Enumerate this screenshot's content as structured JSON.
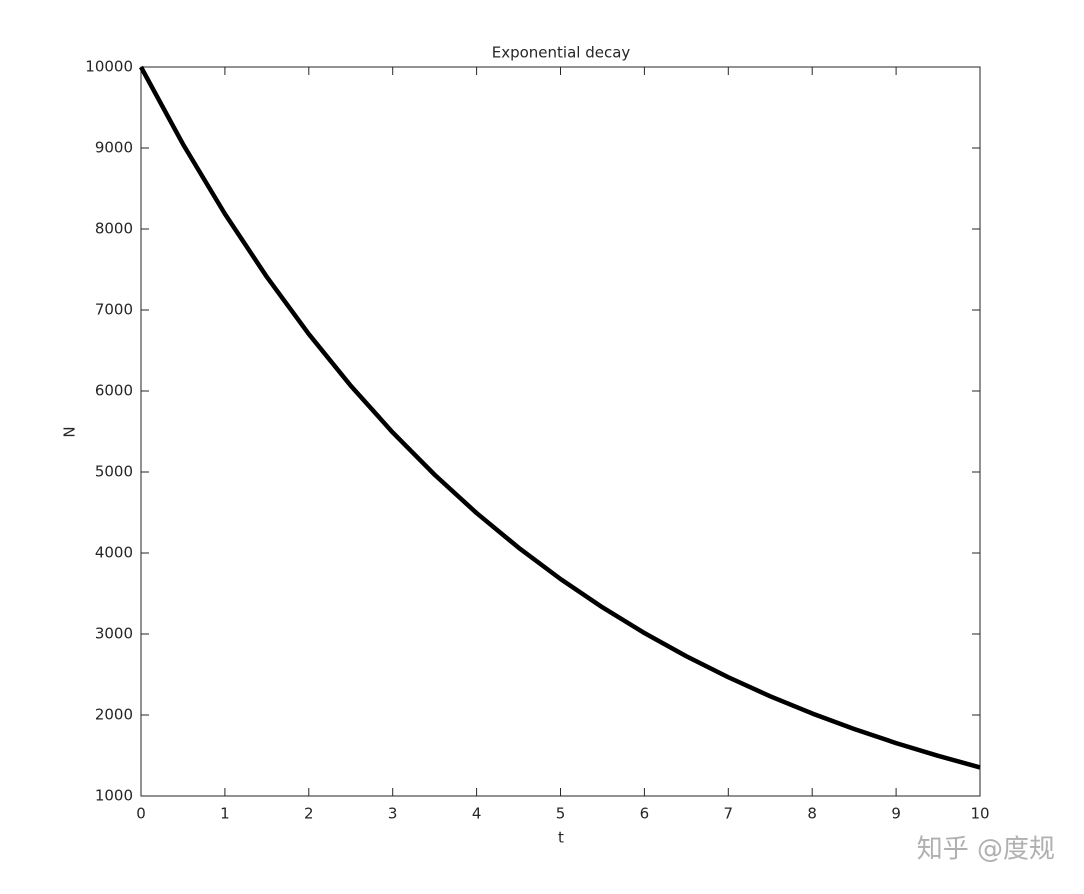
{
  "chart_data": {
    "type": "line",
    "title": "Exponential decay",
    "xlabel": "t",
    "ylabel": "N",
    "x": [
      0,
      0.5,
      1,
      1.5,
      2,
      2.5,
      3,
      3.5,
      4,
      4.5,
      5,
      5.5,
      6,
      6.5,
      7,
      7.5,
      8,
      8.5,
      9,
      9.5,
      10
    ],
    "values": [
      10000,
      9048,
      8187,
      7408,
      6703,
      6065,
      5488,
      4966,
      4493,
      4066,
      3679,
      3329,
      3012,
      2725,
      2466,
      2231,
      2019,
      1827,
      1653,
      1496,
      1353
    ],
    "color": "#000000",
    "xlim": [
      0,
      10
    ],
    "xticks": [
      0,
      1,
      2,
      3,
      4,
      5,
      6,
      7,
      8,
      9,
      10
    ],
    "ylim": [
      1000,
      10000
    ],
    "yticks": [
      1000,
      2000,
      3000,
      4000,
      5000,
      6000,
      7000,
      8000,
      9000,
      10000
    ],
    "grid": false
  },
  "watermark": "知乎 @度规"
}
